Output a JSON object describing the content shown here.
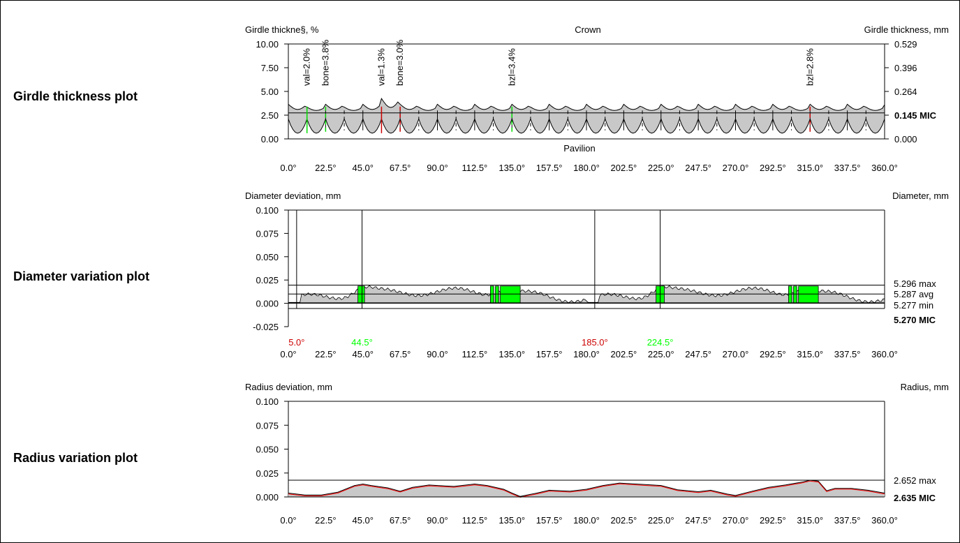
{
  "rows": [
    {
      "label": "Girdle thickness plot"
    },
    {
      "label": "Diameter variation plot"
    },
    {
      "label": "Radius variation plot"
    }
  ],
  "colors": {
    "fill": "#c8c8c8",
    "green": "#00dd00",
    "red": "#cc0000",
    "bright_green": "#00ff00",
    "radius_red": "#ff0000"
  },
  "chart_data": [
    {
      "type": "area",
      "id": "girdle",
      "ylabel_left": "Girdle thickne§, %",
      "ylabel_right": "Girdle thickness, mm",
      "top_label": "Crown",
      "bottom_label": "Pavilion",
      "ylim": [
        0,
        10
      ],
      "xlim": [
        0,
        360
      ],
      "yticks_left": [
        "10.00",
        "7.50",
        "5.00",
        "2.50",
        "0.00"
      ],
      "yticks_right": [
        "0.529",
        "0.396",
        "0.264",
        "0.145 MIC",
        "0.000"
      ],
      "xticks": [
        "0.0°",
        "22.5°",
        "45.0°",
        "67.5°",
        "90.0°",
        "112.5°",
        "135.0°",
        "157.5°",
        "180.0°",
        "202.5°",
        "225.0°",
        "247.5°",
        "270.0°",
        "292.5°",
        "315.0°",
        "337.5°",
        "360.0°"
      ],
      "mic_value": 2.74,
      "annotations": [
        {
          "text": "val=2.0%",
          "x": 11.25,
          "color": "green"
        },
        {
          "text": "bone=3.8%",
          "x": 22.5,
          "color": "green"
        },
        {
          "text": "val=1.3%",
          "x": 56.25,
          "color": "red"
        },
        {
          "text": "bone=3.0%",
          "x": 67.5,
          "color": "red"
        },
        {
          "text": "bzl=3.4%",
          "x": 135.0,
          "color": "green"
        },
        {
          "text": "bzl=2.8%",
          "x": 315.0,
          "color": "red"
        }
      ]
    },
    {
      "type": "area",
      "id": "diameter",
      "ylabel_left": "Diameter deviation, mm",
      "ylabel_right": "Diameter, mm",
      "ylim": [
        -0.025,
        0.1
      ],
      "xlim": [
        0,
        360
      ],
      "yticks_left": [
        "0.100",
        "0.075",
        "0.050",
        "0.025",
        "0.000",
        "-0.025"
      ],
      "xticks": [
        "0.0°",
        "22.5°",
        "45.0°",
        "67.5°",
        "90.0°",
        "112.5°",
        "135.0°",
        "157.5°",
        "180.0°",
        "202.5°",
        "225.0°",
        "247.5°",
        "270.0°",
        "292.5°",
        "315.0°",
        "337.5°",
        "360.0°"
      ],
      "levels": [
        {
          "text": "5.296 max",
          "value": 0.0195
        },
        {
          "text": "5.287 avg",
          "value": 0.01
        },
        {
          "text": "5.277 min",
          "value": 0.0005
        },
        {
          "text": "5.270 MIC",
          "value": -0.0055,
          "bold": true
        }
      ],
      "markers": [
        {
          "text": "5.0°",
          "x": 5.0,
          "color": "red"
        },
        {
          "text": "44.5°",
          "x": 44.5,
          "color": "bright_green"
        },
        {
          "text": "185.0°",
          "x": 185.0,
          "color": "red"
        },
        {
          "text": "224.5°",
          "x": 224.5,
          "color": "bright_green"
        }
      ],
      "highlight_ranges": [
        [
          42,
          46
        ],
        [
          122,
          124
        ],
        [
          125,
          127
        ],
        [
          128,
          140
        ],
        [
          222,
          227
        ],
        [
          302,
          304
        ],
        [
          305,
          307
        ],
        [
          308,
          320
        ]
      ]
    },
    {
      "type": "area",
      "id": "radius",
      "ylabel_left": "Radius deviation, mm",
      "ylabel_right": "Radius, mm",
      "ylim": [
        0,
        0.1
      ],
      "xlim": [
        0,
        360
      ],
      "yticks_left": [
        "0.100",
        "0.075",
        "0.050",
        "0.025",
        "0.000"
      ],
      "xticks": [
        "0.0°",
        "22.5°",
        "45.0°",
        "67.5°",
        "90.0°",
        "112.5°",
        "135.0°",
        "157.5°",
        "180.0°",
        "202.5°",
        "225.0°",
        "247.5°",
        "270.0°",
        "292.5°",
        "315.0°",
        "337.5°",
        "360.0°"
      ],
      "levels": [
        {
          "text": "2.652 max",
          "value": 0.0175
        },
        {
          "text": "2.635 MIC",
          "value": 0.0,
          "bold": true
        }
      ],
      "profile": {
        "x": [
          0,
          10,
          20,
          30,
          40,
          45,
          50,
          60,
          67.5,
          75,
          85,
          90,
          100,
          112.5,
          120,
          130,
          135,
          140,
          150,
          157.5,
          170,
          180,
          190,
          200,
          210,
          220,
          225,
          235,
          247.5,
          255,
          265,
          270,
          280,
          290,
          300,
          310,
          315,
          320,
          325,
          330,
          340,
          350,
          360
        ],
        "y": [
          0.004,
          0.002,
          0.002,
          0.005,
          0.012,
          0.0135,
          0.012,
          0.0095,
          0.006,
          0.01,
          0.0125,
          0.012,
          0.011,
          0.0135,
          0.012,
          0.008,
          0.004,
          0.0005,
          0.004,
          0.007,
          0.006,
          0.008,
          0.012,
          0.0145,
          0.0135,
          0.0125,
          0.012,
          0.0075,
          0.0055,
          0.007,
          0.003,
          0.0015,
          0.006,
          0.01,
          0.0125,
          0.0155,
          0.0175,
          0.0165,
          0.0065,
          0.009,
          0.009,
          0.007,
          0.004
        ]
      }
    }
  ]
}
